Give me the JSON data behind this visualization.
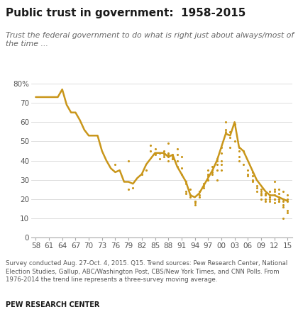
{
  "title": "Public trust in government:  1958-2015",
  "subtitle": "Trust the federal government to do what is right just about always/most of\nthe time ...",
  "footer": "Survey conducted Aug. 27-Oct. 4, 2015. Q15. Trend sources: Pew Research Center, National\nElection Studies, Gallup, ABC/Washington Post, CBS/New York Times, and CNN Polls. From\n1976-2014 the trend line represents a three-survey moving average.",
  "source_label": "PEW RESEARCH CENTER",
  "color": "#C9961A",
  "ylim": [
    0,
    82
  ],
  "yticks": [
    0,
    10,
    20,
    30,
    40,
    50,
    60,
    70,
    80
  ],
  "xtick_labels": [
    "58",
    "61",
    "64",
    "67",
    "70",
    "73",
    "76",
    "79",
    "82",
    "85",
    "88",
    "91",
    "94",
    "97",
    "00",
    "03",
    "06",
    "09",
    "12",
    "15"
  ],
  "xtick_values": [
    58,
    61,
    64,
    67,
    70,
    73,
    76,
    79,
    82,
    85,
    88,
    91,
    94,
    97,
    100,
    103,
    106,
    109,
    112,
    115
  ],
  "trend_line": [
    [
      58,
      73
    ],
    [
      59,
      73
    ],
    [
      60,
      73
    ],
    [
      61,
      73
    ],
    [
      62,
      73
    ],
    [
      63,
      73
    ],
    [
      64,
      77
    ],
    [
      65,
      69
    ],
    [
      66,
      65
    ],
    [
      67,
      65
    ],
    [
      68,
      61
    ],
    [
      69,
      56
    ],
    [
      70,
      53
    ],
    [
      71,
      53
    ],
    [
      72,
      53
    ],
    [
      73,
      45
    ],
    [
      74,
      40
    ],
    [
      75,
      36
    ],
    [
      76,
      34
    ],
    [
      77,
      35
    ],
    [
      78,
      29
    ],
    [
      79,
      29
    ],
    [
      80,
      28
    ],
    [
      81,
      31
    ],
    [
      82,
      33
    ],
    [
      83,
      38
    ],
    [
      84,
      41
    ],
    [
      85,
      44
    ],
    [
      86,
      44
    ],
    [
      87,
      44
    ],
    [
      88,
      42
    ],
    [
      89,
      43
    ],
    [
      90,
      37
    ],
    [
      91,
      33
    ],
    [
      92,
      29
    ],
    [
      93,
      22
    ],
    [
      94,
      21
    ],
    [
      95,
      23
    ],
    [
      96,
      27
    ],
    [
      97,
      31
    ],
    [
      98,
      35
    ],
    [
      99,
      40
    ],
    [
      100,
      47
    ],
    [
      101,
      54
    ],
    [
      102,
      53
    ],
    [
      103,
      60
    ],
    [
      104,
      47
    ],
    [
      105,
      45
    ],
    [
      106,
      40
    ],
    [
      107,
      35
    ],
    [
      108,
      30
    ],
    [
      109,
      27
    ],
    [
      110,
      24
    ],
    [
      111,
      22
    ],
    [
      112,
      22
    ],
    [
      113,
      21
    ],
    [
      114,
      20
    ],
    [
      115,
      19
    ]
  ],
  "scatter_points": [
    [
      76,
      38
    ],
    [
      79,
      40
    ],
    [
      79,
      25
    ],
    [
      80,
      26
    ],
    [
      82,
      33
    ],
    [
      83,
      35
    ],
    [
      84,
      45
    ],
    [
      84,
      48
    ],
    [
      85,
      44
    ],
    [
      85,
      46
    ],
    [
      85,
      43
    ],
    [
      86,
      44
    ],
    [
      86,
      41
    ],
    [
      87,
      42
    ],
    [
      87,
      45
    ],
    [
      87,
      43
    ],
    [
      88,
      43
    ],
    [
      88,
      44
    ],
    [
      88,
      42
    ],
    [
      88,
      40
    ],
    [
      88,
      49
    ],
    [
      89,
      42
    ],
    [
      89,
      43
    ],
    [
      89,
      41
    ],
    [
      89,
      41
    ],
    [
      90,
      40
    ],
    [
      90,
      37
    ],
    [
      90,
      43
    ],
    [
      90,
      46
    ],
    [
      91,
      33
    ],
    [
      91,
      36
    ],
    [
      91,
      42
    ],
    [
      92,
      29
    ],
    [
      92,
      28
    ],
    [
      92,
      23
    ],
    [
      92,
      24
    ],
    [
      93,
      25
    ],
    [
      93,
      22
    ],
    [
      93,
      21
    ],
    [
      93,
      22
    ],
    [
      94,
      19
    ],
    [
      94,
      19
    ],
    [
      94,
      18
    ],
    [
      94,
      17
    ],
    [
      95,
      24
    ],
    [
      95,
      22
    ],
    [
      95,
      21
    ],
    [
      96,
      28
    ],
    [
      96,
      26
    ],
    [
      96,
      27
    ],
    [
      97,
      33
    ],
    [
      97,
      30
    ],
    [
      97,
      32
    ],
    [
      97,
      30
    ],
    [
      97,
      35
    ],
    [
      98,
      37
    ],
    [
      98,
      33
    ],
    [
      98,
      35
    ],
    [
      98,
      34
    ],
    [
      99,
      40
    ],
    [
      99,
      41
    ],
    [
      99,
      38
    ],
    [
      99,
      35
    ],
    [
      99,
      30
    ],
    [
      100,
      44
    ],
    [
      100,
      47
    ],
    [
      100,
      40
    ],
    [
      100,
      38
    ],
    [
      100,
      35
    ],
    [
      101,
      56
    ],
    [
      101,
      55
    ],
    [
      101,
      60
    ],
    [
      102,
      55
    ],
    [
      102,
      52
    ],
    [
      102,
      47
    ],
    [
      103,
      59
    ],
    [
      103,
      50
    ],
    [
      104,
      47
    ],
    [
      104,
      45
    ],
    [
      104,
      42
    ],
    [
      104,
      40
    ],
    [
      105,
      45
    ],
    [
      105,
      38
    ],
    [
      106,
      35
    ],
    [
      106,
      32
    ],
    [
      106,
      33
    ],
    [
      107,
      29
    ],
    [
      107,
      30
    ],
    [
      107,
      32
    ],
    [
      107,
      34
    ],
    [
      108,
      27
    ],
    [
      108,
      26
    ],
    [
      108,
      24
    ],
    [
      109,
      25
    ],
    [
      109,
      22
    ],
    [
      109,
      20
    ],
    [
      109,
      23
    ],
    [
      109,
      24
    ],
    [
      110,
      22
    ],
    [
      110,
      20
    ],
    [
      110,
      19
    ],
    [
      110,
      22
    ],
    [
      110,
      23
    ],
    [
      111,
      21
    ],
    [
      111,
      19
    ],
    [
      111,
      20
    ],
    [
      111,
      22
    ],
    [
      111,
      24
    ],
    [
      112,
      22
    ],
    [
      112,
      20
    ],
    [
      112,
      18
    ],
    [
      112,
      20
    ],
    [
      112,
      24
    ],
    [
      112,
      25
    ],
    [
      112,
      29
    ],
    [
      113,
      20
    ],
    [
      113,
      19
    ],
    [
      113,
      21
    ],
    [
      113,
      19
    ],
    [
      113,
      23
    ],
    [
      113,
      25
    ],
    [
      114,
      19
    ],
    [
      114,
      17
    ],
    [
      114,
      20
    ],
    [
      114,
      16
    ],
    [
      114,
      24
    ],
    [
      114,
      10
    ],
    [
      115,
      19
    ],
    [
      115,
      20
    ],
    [
      115,
      22
    ],
    [
      115,
      14
    ],
    [
      115,
      13
    ]
  ]
}
